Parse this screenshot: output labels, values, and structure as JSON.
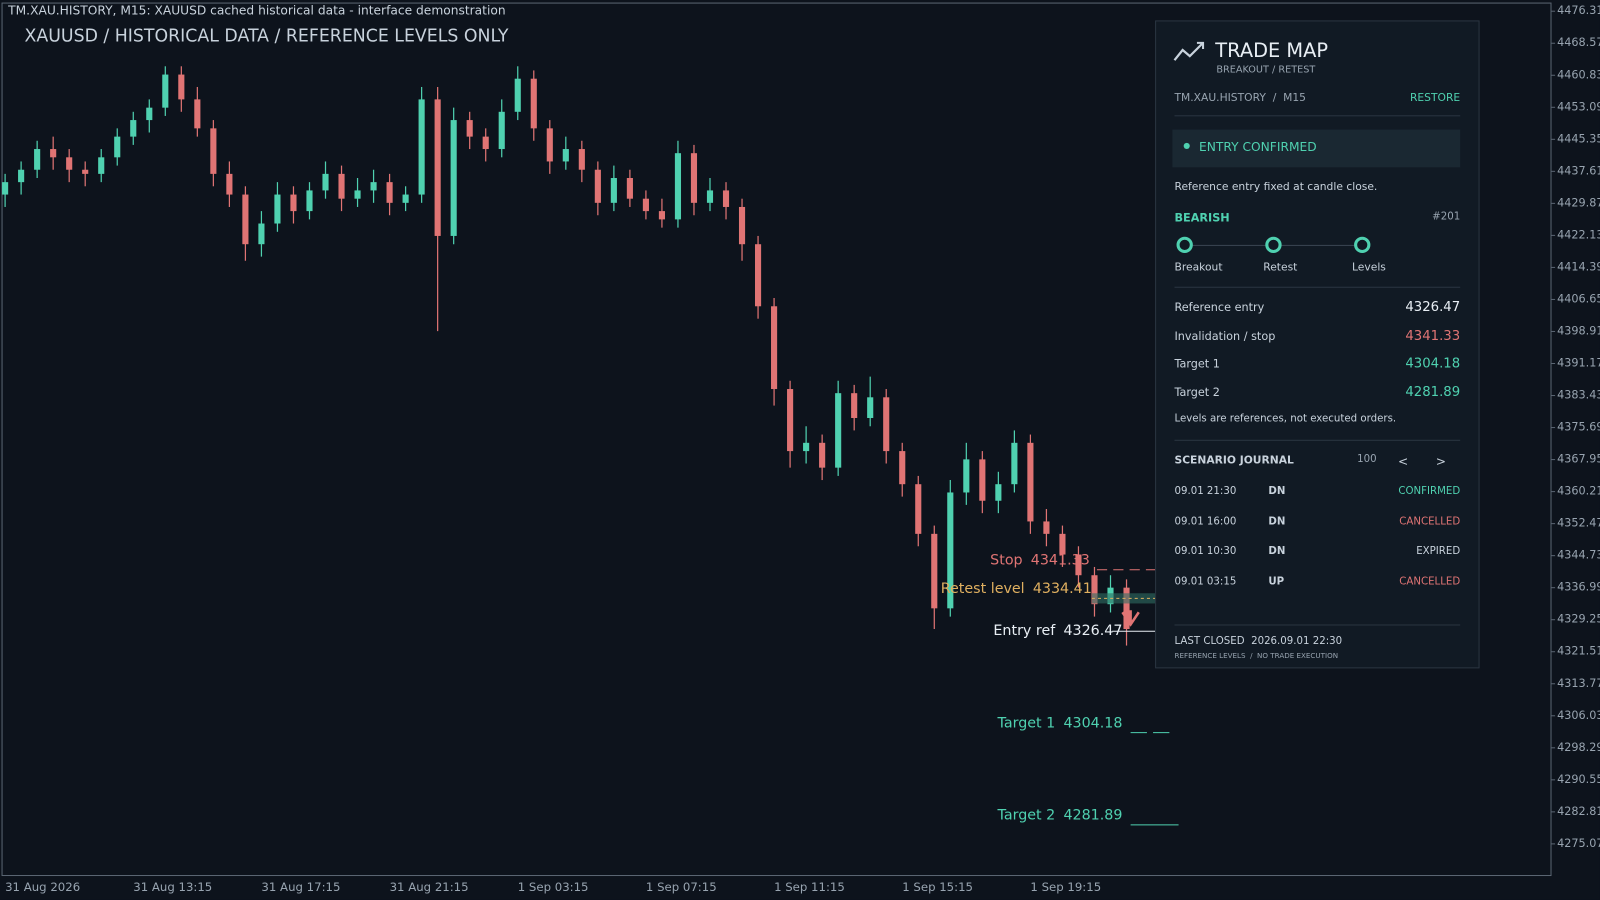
{
  "header": {
    "caption": "TM.XAU.HISTORY, M15:  XAUUSD cached historical data - interface demonstration",
    "title": "XAUUSD / HISTORICAL DATA / REFERENCE LEVELS ONLY"
  },
  "chart_data": {
    "type": "candlestick",
    "time_labels": [
      "31 Aug 2026",
      "31 Aug 13:15",
      "31 Aug 17:15",
      "31 Aug 21:15",
      "1 Sep 03:15",
      "1 Sep 07:15",
      "1 Sep 11:15",
      "1 Sep 15:15",
      "1 Sep 19:15"
    ],
    "candles": [
      [
        4432,
        4437,
        4429,
        4435
      ],
      [
        4435,
        4440,
        4432,
        4438
      ],
      [
        4438,
        4445,
        4436,
        4443
      ],
      [
        4443,
        4446,
        4438,
        4441
      ],
      [
        4441,
        4443,
        4435,
        4438
      ],
      [
        4438,
        4440,
        4434,
        4437
      ],
      [
        4437,
        4443,
        4435,
        4441
      ],
      [
        4441,
        4448,
        4439,
        4446
      ],
      [
        4446,
        4452,
        4444,
        4450
      ],
      [
        4450,
        4455,
        4447,
        4453
      ],
      [
        4453,
        4463,
        4451,
        4461
      ],
      [
        4461,
        4463,
        4452,
        4455
      ],
      [
        4455,
        4458,
        4446,
        4448
      ],
      [
        4448,
        4450,
        4434,
        4437
      ],
      [
        4437,
        4440,
        4429,
        4432
      ],
      [
        4432,
        4434,
        4416,
        4420
      ],
      [
        4420,
        4428,
        4417,
        4425
      ],
      [
        4425,
        4435,
        4423,
        4432
      ],
      [
        4432,
        4434,
        4425,
        4428
      ],
      [
        4428,
        4435,
        4426,
        4433
      ],
      [
        4433,
        4440,
        4431,
        4437
      ],
      [
        4437,
        4439,
        4428,
        4431
      ],
      [
        4431,
        4436,
        4429,
        4433
      ],
      [
        4433,
        4438,
        4430,
        4435
      ],
      [
        4435,
        4437,
        4427,
        4430
      ],
      [
        4430,
        4434,
        4428,
        4432
      ],
      [
        4432,
        4458,
        4430,
        4455
      ],
      [
        4455,
        4458,
        4399,
        4422
      ],
      [
        4422,
        4453,
        4420,
        4450
      ],
      [
        4450,
        4452,
        4443,
        4446
      ],
      [
        4446,
        4448,
        4440,
        4443
      ],
      [
        4443,
        4455,
        4441,
        4452
      ],
      [
        4452,
        4463,
        4450,
        4460
      ],
      [
        4460,
        4462,
        4445,
        4448
      ],
      [
        4448,
        4450,
        4437,
        4440
      ],
      [
        4440,
        4446,
        4438,
        4443
      ],
      [
        4443,
        4445,
        4435,
        4438
      ],
      [
        4438,
        4440,
        4427,
        4430
      ],
      [
        4430,
        4439,
        4428,
        4436
      ],
      [
        4436,
        4438,
        4429,
        4431
      ],
      [
        4431,
        4433,
        4426,
        4428
      ],
      [
        4428,
        4431,
        4424,
        4426
      ],
      [
        4426,
        4445,
        4424,
        4442
      ],
      [
        4442,
        4444,
        4427,
        4430
      ],
      [
        4430,
        4436,
        4428,
        4433
      ],
      [
        4433,
        4435,
        4426,
        4429
      ],
      [
        4429,
        4431,
        4416,
        4420
      ],
      [
        4420,
        4422,
        4402,
        4405
      ],
      [
        4405,
        4407,
        4381,
        4385
      ],
      [
        4385,
        4387,
        4366,
        4370
      ],
      [
        4370,
        4376,
        4367,
        4372
      ],
      [
        4372,
        4374,
        4363,
        4366
      ],
      [
        4366,
        4387,
        4364,
        4384
      ],
      [
        4384,
        4386,
        4375,
        4378
      ],
      [
        4378,
        4388,
        4376,
        4383
      ],
      [
        4383,
        4385,
        4367,
        4370
      ],
      [
        4370,
        4372,
        4359,
        4362
      ],
      [
        4362,
        4364,
        4347,
        4350
      ],
      [
        4350,
        4352,
        4327,
        4332
      ],
      [
        4332,
        4363,
        4330,
        4360
      ],
      [
        4360,
        4372,
        4357,
        4368
      ],
      [
        4368,
        4370,
        4355,
        4358
      ],
      [
        4358,
        4365,
        4355,
        4362
      ],
      [
        4362,
        4375,
        4360,
        4372
      ],
      [
        4372,
        4374,
        4350,
        4353
      ],
      [
        4353,
        4356,
        4347,
        4350
      ],
      [
        4350,
        4352,
        4342,
        4345
      ],
      [
        4345,
        4347,
        4337,
        4340
      ],
      [
        4340,
        4342,
        4330,
        4333
      ],
      [
        4333,
        4340,
        4331,
        4337
      ],
      [
        4337,
        4339,
        4323,
        4327
      ]
    ],
    "ylim": [
      4267.43,
      4478.28
    ],
    "yticks": [
      4476.31,
      4468.57,
      4460.83,
      4453.09,
      4445.35,
      4437.61,
      4429.87,
      4422.13,
      4414.39,
      4406.65,
      4398.91,
      4391.17,
      4383.43,
      4375.69,
      4367.95,
      4360.21,
      4352.47,
      4344.73,
      4336.99,
      4329.25,
      4321.51,
      4313.77,
      4306.03,
      4298.29,
      4290.55,
      4282.81,
      4275.07
    ],
    "up_color": "#4fd1b0",
    "down_color": "#e07474",
    "levels": [
      {
        "label": "Stop",
        "value": 4341.33,
        "color": "#e07474"
      },
      {
        "label": "Retest level",
        "value": 4334.41,
        "color": "#e0b060"
      },
      {
        "label": "Entry ref",
        "value": 4326.47,
        "color": "#e8eef4"
      },
      {
        "label": "Target 1",
        "value": 4304.18,
        "color": "#4fd1b0"
      },
      {
        "label": "Target 2",
        "value": 4281.89,
        "color": "#4fd1b0"
      }
    ]
  },
  "panel": {
    "title": "TRADE MAP",
    "subtitle": "BREAKOUT / RETEST",
    "symbol": "TM.XAU.HISTORY  /  M15",
    "restore": "RESTORE",
    "status": "ENTRY CONFIRMED",
    "status_note": "Reference entry fixed at candle close.",
    "bias": "BEARISH",
    "id": "#201",
    "steps": [
      "Breakout",
      "Retest",
      "Levels"
    ],
    "rows": [
      "Reference entry",
      "Invalidation / stop",
      "Target 1",
      "Target 2"
    ],
    "levels_note": "Levels are references, not executed orders.",
    "journal_title": "SCENARIO JOURNAL",
    "journal_count": "100",
    "prev": "<",
    "next": ">",
    "journal": [
      [
        "09.01 21:30",
        "DN",
        "CONFIRMED"
      ],
      [
        "09.01 16:00",
        "DN",
        "CANCELLED"
      ],
      [
        "09.01 10:30",
        "DN",
        "EXPIRED"
      ],
      [
        "09.01 03:15",
        "UP",
        "CANCELLED"
      ]
    ],
    "last_closed": "LAST CLOSED  2026.09.01 22:30",
    "footer": "REFERENCE LEVELS  /  NO TRADE EXECUTION"
  }
}
